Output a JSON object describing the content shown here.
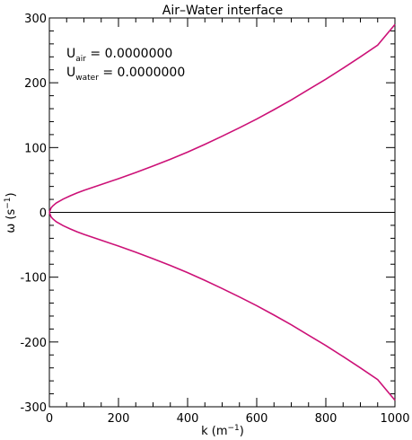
{
  "chart_data": {
    "type": "line",
    "title": "Air–Water interface",
    "xlabel": {
      "main": "k (m",
      "sup": "−1",
      "close": ")"
    },
    "ylabel": {
      "main": "ω (s",
      "sup": "−1",
      "close": ")"
    },
    "xlim": [
      0,
      1000
    ],
    "ylim": [
      -300,
      300
    ],
    "xticks": [
      0,
      200,
      400,
      600,
      800,
      1000
    ],
    "yticks": [
      -300,
      -200,
      -100,
      0,
      100,
      200,
      300
    ],
    "annotations": [
      {
        "main": "U",
        "sub": "air",
        "rest": " = 0.0000000"
      },
      {
        "main": "U",
        "sub": "water",
        "rest": " = 0.0000000"
      }
    ],
    "series": [
      {
        "color": "#cc1177",
        "x": [
          0,
          5,
          10,
          20,
          40,
          60,
          80,
          100,
          150,
          200,
          250,
          300,
          350,
          400,
          450,
          500,
          550,
          600,
          650,
          700,
          750,
          800,
          850,
          900,
          950,
          1000
        ],
        "y": [
          0,
          7,
          10,
          14.5,
          20.5,
          25.5,
          30,
          34,
          43,
          52,
          61.5,
          71.5,
          82,
          93,
          105,
          117.5,
          130.5,
          144,
          158.5,
          173.5,
          189.5,
          205.5,
          222.5,
          240,
          258,
          290
        ]
      },
      {
        "color": "#cc1177",
        "x": [
          0,
          5,
          10,
          20,
          40,
          60,
          80,
          100,
          150,
          200,
          250,
          300,
          350,
          400,
          450,
          500,
          550,
          600,
          650,
          700,
          750,
          800,
          850,
          900,
          950,
          1000
        ],
        "y": [
          0,
          -7,
          -10,
          -14.5,
          -20.5,
          -25.5,
          -30,
          -34,
          -43,
          -52,
          -61.5,
          -71.5,
          -82,
          -93,
          -105,
          -117.5,
          -130.5,
          -144,
          -158.5,
          -173.5,
          -189.5,
          -205.5,
          -222.5,
          -240,
          -258,
          -290
        ]
      }
    ],
    "zero_line": {
      "y": 0,
      "color": "#000000"
    },
    "grid": false,
    "colors": {
      "curve": "#cc1177",
      "axes": "#000000",
      "background": "#ffffff"
    }
  }
}
